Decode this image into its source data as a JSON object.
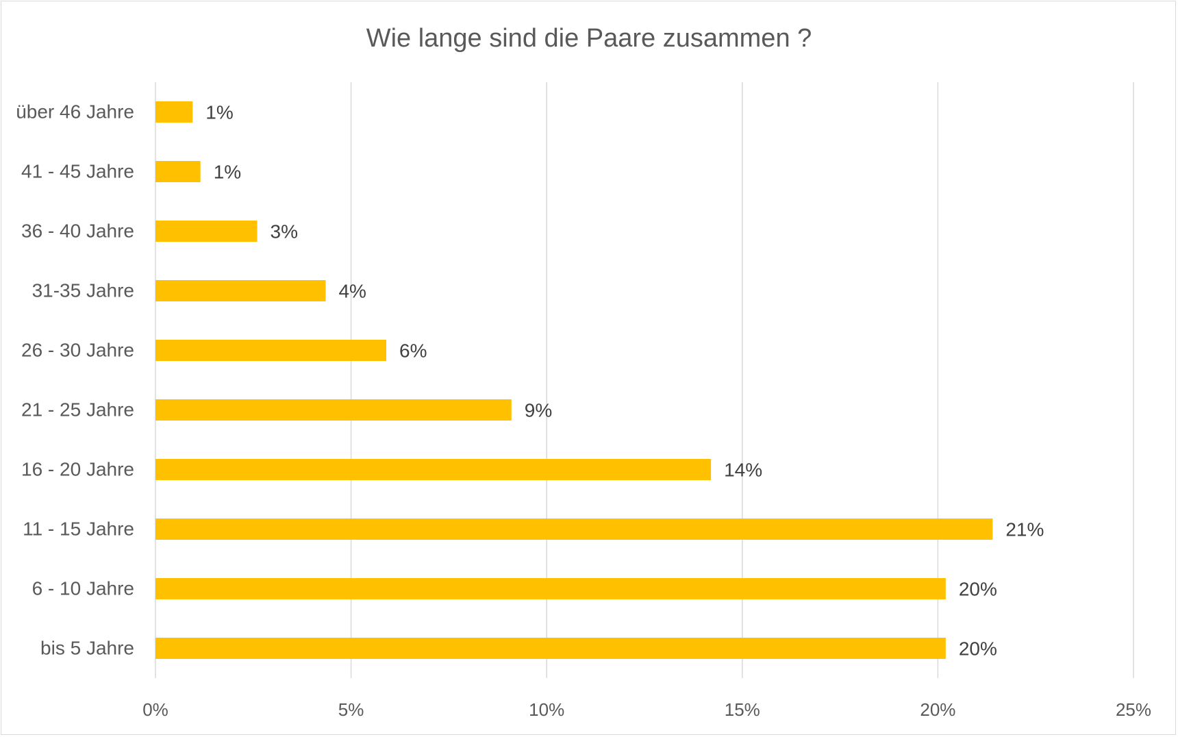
{
  "chart_data": {
    "type": "bar",
    "orientation": "horizontal",
    "title": "Wie lange sind die Paare zusammen ?",
    "xlabel": "",
    "ylabel": "",
    "categories": [
      "bis 5 Jahre",
      "6 - 10 Jahre",
      "11 - 15 Jahre",
      "16 - 20 Jahre",
      "21 - 25 Jahre",
      "26 - 30 Jahre",
      "31-35 Jahre",
      "36 - 40 Jahre",
      "41 - 45 Jahre",
      "über 46 Jahre"
    ],
    "values": [
      20.2,
      20.2,
      21.4,
      14.2,
      9.1,
      5.9,
      4.35,
      2.6,
      1.15,
      0.95
    ],
    "data_labels": [
      "20%",
      "20%",
      "21%",
      "14%",
      "9%",
      "6%",
      "4%",
      "3%",
      "1%",
      "1%"
    ],
    "xlim": [
      0,
      25
    ],
    "x_ticks": [
      0,
      5,
      10,
      15,
      20,
      25
    ],
    "x_tick_labels": [
      "0%",
      "5%",
      "10%",
      "15%",
      "20%",
      "25%"
    ],
    "grid": "vertical",
    "legend": "none",
    "bar_color": "#FFC000",
    "gridline_color": "#d9d9d9",
    "text_color": "#595959"
  }
}
